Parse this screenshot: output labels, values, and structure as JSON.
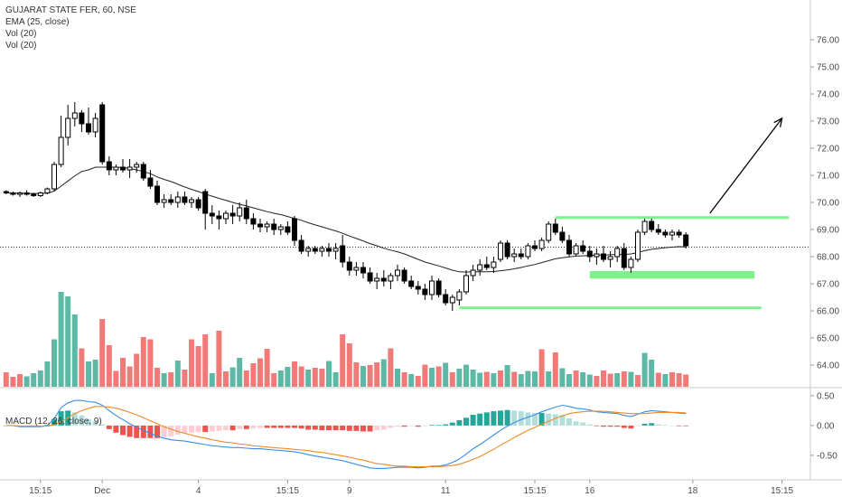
{
  "header": {
    "symbol_line": "GUJARAT STATE FER, 60, NSE",
    "indicators": [
      "EMA (25, close)",
      "Vol (20)",
      "Vol (20)"
    ],
    "macd_label": "MACD (12, 26, close, 9)"
  },
  "chart_data": {
    "type": "candlestick",
    "title": "GUJARAT STATE FER, 60, NSE",
    "price_axis": {
      "ylim": [
        63.2,
        76.8
      ],
      "ticks": [
        "76.00",
        "75.00",
        "74.00",
        "73.00",
        "72.00",
        "71.00",
        "70.00",
        "69.00",
        "68.00",
        "67.00",
        "66.00",
        "65.00",
        "64.00"
      ],
      "current_price_line": 68.35
    },
    "macd_axis": {
      "ylim": [
        -0.85,
        0.62
      ],
      "ticks": [
        "0.50",
        "0.00",
        "-0.50"
      ]
    },
    "time_axis": {
      "labels": [
        "15:15",
        "Dec",
        "4",
        "15:15",
        "9",
        "11",
        "15:15",
        "16",
        "18",
        "15:15"
      ]
    },
    "colors": {
      "up": "#ffffff",
      "down": "#000000",
      "vol_up": "#4fb39e",
      "vol_down": "#ef6f6c",
      "ema": "#222222",
      "macd": "#3a8ee6",
      "signal": "#f08a24",
      "hist_pos_strong": "#26a69a",
      "hist_pos_weak": "#b2dfdb",
      "hist_neg_strong": "#ef5350",
      "hist_neg_weak": "#ffcdd2",
      "zone": "#66ee77"
    },
    "candles": [
      [
        70.4,
        70.45,
        70.3,
        70.35
      ],
      [
        70.35,
        70.4,
        70.25,
        70.3
      ],
      [
        70.3,
        70.4,
        70.2,
        70.35
      ],
      [
        70.35,
        70.45,
        70.25,
        70.3
      ],
      [
        70.3,
        70.35,
        70.2,
        70.25
      ],
      [
        70.25,
        70.4,
        70.2,
        70.35
      ],
      [
        70.35,
        70.55,
        70.3,
        70.5
      ],
      [
        70.5,
        71.5,
        70.4,
        71.4
      ],
      [
        71.4,
        73.2,
        71.3,
        72.4
      ],
      [
        72.4,
        73.6,
        72.1,
        73.1
      ],
      [
        73.1,
        73.7,
        72.8,
        73.3
      ],
      [
        73.3,
        73.4,
        72.6,
        72.9
      ],
      [
        72.9,
        73.5,
        72.5,
        72.6
      ],
      [
        72.6,
        73.3,
        72.4,
        73.1
      ],
      [
        73.6,
        73.7,
        71.4,
        71.5
      ],
      [
        71.5,
        71.7,
        71.0,
        71.2
      ],
      [
        71.2,
        71.4,
        71.0,
        71.3
      ],
      [
        71.3,
        71.6,
        71.1,
        71.2
      ],
      [
        71.2,
        71.6,
        70.9,
        71.3
      ],
      [
        71.3,
        71.5,
        71.1,
        71.4
      ],
      [
        71.4,
        71.5,
        70.8,
        70.9
      ],
      [
        70.9,
        71.2,
        70.5,
        70.6
      ],
      [
        70.6,
        70.8,
        69.9,
        70.0
      ],
      [
        70.0,
        70.3,
        69.8,
        70.1
      ],
      [
        70.1,
        70.3,
        69.9,
        70.0
      ],
      [
        70.0,
        70.4,
        69.8,
        70.2
      ],
      [
        70.2,
        70.4,
        69.9,
        70.0
      ],
      [
        70.0,
        70.2,
        69.8,
        70.1
      ],
      [
        70.1,
        70.2,
        69.7,
        69.8
      ],
      [
        70.4,
        70.5,
        69.0,
        69.6
      ],
      [
        69.6,
        69.9,
        69.2,
        69.5
      ],
      [
        69.5,
        69.7,
        69.0,
        69.4
      ],
      [
        69.4,
        69.7,
        69.2,
        69.6
      ],
      [
        69.6,
        69.9,
        69.2,
        69.5
      ],
      [
        69.5,
        70.0,
        69.3,
        69.8
      ],
      [
        69.8,
        70.1,
        69.2,
        69.4
      ],
      [
        69.4,
        69.6,
        69.0,
        69.2
      ],
      [
        69.2,
        69.4,
        68.9,
        69.1
      ],
      [
        69.1,
        69.3,
        68.9,
        69.2
      ],
      [
        69.2,
        69.4,
        68.8,
        69.0
      ],
      [
        69.0,
        69.2,
        68.8,
        69.1
      ],
      [
        69.1,
        69.3,
        68.8,
        68.9
      ],
      [
        69.4,
        69.5,
        68.4,
        68.6
      ],
      [
        68.6,
        68.8,
        68.1,
        68.2
      ],
      [
        68.2,
        68.4,
        68.0,
        68.3
      ],
      [
        68.3,
        68.4,
        68.1,
        68.2
      ],
      [
        68.2,
        68.4,
        68.0,
        68.3
      ],
      [
        68.3,
        68.5,
        68.0,
        68.2
      ],
      [
        68.2,
        68.5,
        67.9,
        68.3
      ],
      [
        68.4,
        68.8,
        67.6,
        67.8
      ],
      [
        67.8,
        68.0,
        67.3,
        67.5
      ],
      [
        67.5,
        67.8,
        67.3,
        67.6
      ],
      [
        67.6,
        67.8,
        67.2,
        67.4
      ],
      [
        67.4,
        67.6,
        67.0,
        67.1
      ],
      [
        67.1,
        67.4,
        66.8,
        67.2
      ],
      [
        67.2,
        67.5,
        66.9,
        67.1
      ],
      [
        67.1,
        67.4,
        66.8,
        67.3
      ],
      [
        67.3,
        67.7,
        67.1,
        67.5
      ],
      [
        67.5,
        67.6,
        67.0,
        67.1
      ],
      [
        67.1,
        67.3,
        66.8,
        66.9
      ],
      [
        66.9,
        67.1,
        66.6,
        66.8
      ],
      [
        66.8,
        67.0,
        66.4,
        66.6
      ],
      [
        66.6,
        67.3,
        66.4,
        67.1
      ],
      [
        67.1,
        67.2,
        66.5,
        66.6
      ],
      [
        66.6,
        66.8,
        66.2,
        66.3
      ],
      [
        66.3,
        66.6,
        66.0,
        66.5
      ],
      [
        66.4,
        66.8,
        66.2,
        66.7
      ],
      [
        66.7,
        67.5,
        66.6,
        67.3
      ],
      [
        67.3,
        67.7,
        67.1,
        67.5
      ],
      [
        67.5,
        67.9,
        67.3,
        67.7
      ],
      [
        67.7,
        68.0,
        67.5,
        67.6
      ],
      [
        67.6,
        68.0,
        67.4,
        67.8
      ],
      [
        67.9,
        68.6,
        67.8,
        68.5
      ],
      [
        68.5,
        68.6,
        67.9,
        68.0
      ],
      [
        68.0,
        68.3,
        67.8,
        68.1
      ],
      [
        68.1,
        68.3,
        67.9,
        68.0
      ],
      [
        68.0,
        68.5,
        67.9,
        68.4
      ],
      [
        68.4,
        68.6,
        68.2,
        68.3
      ],
      [
        68.3,
        68.7,
        68.2,
        68.6
      ],
      [
        68.6,
        69.3,
        68.5,
        69.2
      ],
      [
        69.2,
        69.4,
        68.8,
        68.9
      ],
      [
        68.9,
        69.1,
        68.5,
        68.6
      ],
      [
        68.6,
        68.8,
        68.0,
        68.1
      ],
      [
        68.1,
        68.5,
        68.0,
        68.4
      ],
      [
        68.4,
        68.6,
        68.1,
        68.2
      ],
      [
        68.2,
        68.4,
        67.8,
        68.0
      ],
      [
        68.0,
        68.3,
        67.7,
        68.1
      ],
      [
        68.1,
        68.4,
        67.8,
        67.9
      ],
      [
        67.9,
        68.2,
        67.6,
        68.0
      ],
      [
        68.0,
        68.4,
        67.8,
        68.3
      ],
      [
        68.3,
        68.5,
        67.5,
        67.6
      ],
      [
        67.6,
        68.0,
        67.4,
        67.9
      ],
      [
        67.9,
        69.0,
        67.8,
        68.9
      ],
      [
        68.9,
        69.4,
        68.8,
        69.3
      ],
      [
        69.3,
        69.4,
        68.9,
        69.0
      ],
      [
        69.0,
        69.2,
        68.8,
        68.9
      ],
      [
        68.9,
        69.0,
        68.7,
        68.8
      ],
      [
        68.8,
        69.0,
        68.6,
        68.9
      ],
      [
        68.9,
        69.0,
        68.7,
        68.8
      ],
      [
        68.8,
        68.9,
        68.3,
        68.4
      ]
    ],
    "volume": [
      [
        3.2,
        0
      ],
      [
        2.2,
        0
      ],
      [
        2.8,
        0
      ],
      [
        2.3,
        1
      ],
      [
        3.0,
        1
      ],
      [
        3.6,
        1
      ],
      [
        5.6,
        1
      ],
      [
        10.5,
        1
      ],
      [
        21,
        1
      ],
      [
        20,
        1
      ],
      [
        16,
        1
      ],
      [
        8.5,
        0
      ],
      [
        5.6,
        1
      ],
      [
        6.0,
        1
      ],
      [
        15,
        0
      ],
      [
        9.2,
        0
      ],
      [
        3.5,
        0
      ],
      [
        6.4,
        0
      ],
      [
        4.5,
        0
      ],
      [
        7.3,
        0
      ],
      [
        11,
        0
      ],
      [
        10.5,
        0
      ],
      [
        4.2,
        0
      ],
      [
        3.0,
        1
      ],
      [
        3.2,
        0
      ],
      [
        5.8,
        1
      ],
      [
        3.8,
        0
      ],
      [
        10.5,
        0
      ],
      [
        9.0,
        0
      ],
      [
        11.6,
        0
      ],
      [
        3.0,
        1
      ],
      [
        12.4,
        0
      ],
      [
        3.4,
        0
      ],
      [
        4.3,
        1
      ],
      [
        6.4,
        1
      ],
      [
        3.6,
        0
      ],
      [
        5.2,
        0
      ],
      [
        6.3,
        0
      ],
      [
        8.4,
        0
      ],
      [
        3.0,
        0
      ],
      [
        3.6,
        1
      ],
      [
        4.4,
        1
      ],
      [
        5.6,
        0
      ],
      [
        4.5,
        0
      ],
      [
        3.8,
        1
      ],
      [
        4.2,
        0
      ],
      [
        4.0,
        0
      ],
      [
        5.7,
        1
      ],
      [
        3.2,
        1
      ],
      [
        11.6,
        0
      ],
      [
        9.6,
        0
      ],
      [
        5.4,
        0
      ],
      [
        4.6,
        1
      ],
      [
        4.8,
        0
      ],
      [
        5.4,
        0
      ],
      [
        6.1,
        1
      ],
      [
        8.5,
        0
      ],
      [
        4.0,
        1
      ],
      [
        3.2,
        0
      ],
      [
        2.8,
        1
      ],
      [
        2.4,
        0
      ],
      [
        4.9,
        0
      ],
      [
        4.2,
        1
      ],
      [
        4.5,
        0
      ],
      [
        5.3,
        1
      ],
      [
        3.2,
        0
      ],
      [
        4.0,
        1
      ],
      [
        4.9,
        1
      ],
      [
        3.8,
        1
      ],
      [
        3.1,
        1
      ],
      [
        3.3,
        0
      ],
      [
        3.0,
        1
      ],
      [
        3.6,
        0
      ],
      [
        4.8,
        1
      ],
      [
        3.3,
        0
      ],
      [
        2.8,
        1
      ],
      [
        3.5,
        1
      ],
      [
        3.4,
        1
      ],
      [
        8.3,
        0
      ],
      [
        3.4,
        1
      ],
      [
        7.6,
        0
      ],
      [
        4.1,
        1
      ],
      [
        2.8,
        1
      ],
      [
        3.6,
        0
      ],
      [
        3.2,
        1
      ],
      [
        2.7,
        1
      ],
      [
        2.4,
        0
      ],
      [
        3.6,
        0
      ],
      [
        2.9,
        0
      ],
      [
        3.0,
        1
      ],
      [
        3.4,
        0
      ],
      [
        3.3,
        1
      ],
      [
        2.6,
        0
      ],
      [
        7.5,
        1
      ],
      [
        6.0,
        1
      ],
      [
        3.1,
        0
      ],
      [
        2.8,
        1
      ],
      [
        3.2,
        0
      ],
      [
        3.0,
        0
      ],
      [
        2.7,
        0
      ]
    ],
    "ema": [
      70.35,
      70.34,
      70.34,
      70.33,
      70.33,
      70.33,
      70.34,
      70.42,
      70.6,
      70.79,
      70.98,
      71.14,
      71.2,
      71.3,
      71.3,
      71.3,
      71.3,
      71.29,
      71.25,
      71.2,
      71.14,
      71.06,
      70.94,
      70.85,
      70.77,
      70.67,
      70.57,
      70.48,
      70.4,
      70.31,
      70.23,
      70.15,
      70.08,
      70.0,
      69.93,
      69.87,
      69.8,
      69.73,
      69.66,
      69.6,
      69.55,
      69.48,
      69.41,
      69.34,
      69.25,
      69.17,
      69.1,
      69.02,
      68.95,
      68.86,
      68.76,
      68.67,
      68.58,
      68.48,
      68.4,
      68.31,
      68.24,
      68.18,
      68.1,
      68.0,
      67.9,
      67.8,
      67.73,
      67.66,
      67.58,
      67.5,
      67.44,
      67.43,
      67.44,
      67.44,
      67.44,
      67.45,
      67.48,
      67.51,
      67.55,
      67.6,
      67.66,
      67.71,
      67.78,
      67.85,
      67.92,
      67.96,
      67.99,
      68.02,
      68.03,
      68.04,
      68.06,
      68.06,
      68.07,
      68.08,
      68.08,
      68.1,
      68.15,
      68.22,
      68.27,
      68.3,
      68.33,
      68.35,
      68.37,
      68.36
    ],
    "macd": {
      "macd": [
        0.0,
        0.0,
        -0.02,
        -0.02,
        -0.02,
        -0.02,
        0.0,
        0.12,
        0.3,
        0.38,
        0.42,
        0.42,
        0.4,
        0.39,
        0.34,
        0.25,
        0.17,
        0.1,
        0.03,
        -0.03,
        -0.08,
        -0.13,
        -0.18,
        -0.21,
        -0.24,
        -0.25,
        -0.26,
        -0.28,
        -0.3,
        -0.32,
        -0.34,
        -0.35,
        -0.36,
        -0.37,
        -0.37,
        -0.38,
        -0.39,
        -0.39,
        -0.4,
        -0.41,
        -0.42,
        -0.43,
        -0.44,
        -0.46,
        -0.49,
        -0.51,
        -0.53,
        -0.55,
        -0.57,
        -0.59,
        -0.62,
        -0.65,
        -0.68,
        -0.71,
        -0.72,
        -0.72,
        -0.71,
        -0.7,
        -0.7,
        -0.7,
        -0.71,
        -0.7,
        -0.68,
        -0.68,
        -0.66,
        -0.62,
        -0.56,
        -0.48,
        -0.39,
        -0.32,
        -0.24,
        -0.16,
        -0.08,
        -0.01,
        0.05,
        0.1,
        0.14,
        0.18,
        0.23,
        0.27,
        0.31,
        0.34,
        0.32,
        0.29,
        0.28,
        0.26,
        0.23,
        0.22,
        0.21,
        0.2,
        0.17,
        0.15,
        0.19,
        0.23,
        0.25,
        0.24,
        0.23,
        0.22,
        0.21,
        0.2
      ],
      "signal": [
        0.0,
        0.0,
        -0.01,
        -0.01,
        -0.01,
        -0.01,
        -0.01,
        0.01,
        0.06,
        0.13,
        0.2,
        0.25,
        0.29,
        0.32,
        0.32,
        0.31,
        0.29,
        0.26,
        0.22,
        0.18,
        0.13,
        0.08,
        0.03,
        -0.02,
        -0.06,
        -0.1,
        -0.13,
        -0.16,
        -0.19,
        -0.21,
        -0.24,
        -0.26,
        -0.28,
        -0.29,
        -0.31,
        -0.32,
        -0.34,
        -0.35,
        -0.36,
        -0.37,
        -0.38,
        -0.39,
        -0.4,
        -0.41,
        -0.42,
        -0.44,
        -0.45,
        -0.47,
        -0.49,
        -0.51,
        -0.53,
        -0.56,
        -0.58,
        -0.61,
        -0.64,
        -0.65,
        -0.67,
        -0.68,
        -0.68,
        -0.69,
        -0.69,
        -0.69,
        -0.69,
        -0.69,
        -0.68,
        -0.67,
        -0.65,
        -0.61,
        -0.57,
        -0.52,
        -0.46,
        -0.4,
        -0.33,
        -0.27,
        -0.2,
        -0.14,
        -0.08,
        -0.03,
        0.02,
        0.07,
        0.12,
        0.16,
        0.2,
        0.22,
        0.23,
        0.24,
        0.24,
        0.24,
        0.23,
        0.22,
        0.21,
        0.2,
        0.2,
        0.2,
        0.21,
        0.22,
        0.22,
        0.22,
        0.22,
        0.21
      ],
      "hist": [
        0.0,
        0.0,
        -0.01,
        -0.01,
        -0.01,
        -0.01,
        0.01,
        0.11,
        0.24,
        0.25,
        0.22,
        0.17,
        0.11,
        0.07,
        0.02,
        -0.06,
        -0.12,
        -0.16,
        -0.19,
        -0.21,
        -0.21,
        -0.21,
        -0.21,
        -0.19,
        -0.18,
        -0.15,
        -0.13,
        -0.12,
        -0.11,
        -0.11,
        -0.1,
        -0.09,
        -0.08,
        -0.08,
        -0.06,
        -0.06,
        -0.05,
        -0.04,
        -0.04,
        -0.04,
        -0.04,
        -0.04,
        -0.04,
        -0.05,
        -0.07,
        -0.07,
        -0.08,
        -0.08,
        -0.08,
        -0.08,
        -0.09,
        -0.09,
        -0.1,
        -0.1,
        -0.08,
        -0.07,
        -0.04,
        -0.02,
        -0.02,
        -0.01,
        -0.02,
        -0.01,
        0.01,
        0.01,
        0.02,
        0.05,
        0.09,
        0.13,
        0.18,
        0.2,
        0.22,
        0.24,
        0.25,
        0.26,
        0.25,
        0.24,
        0.22,
        0.21,
        0.21,
        0.2,
        0.19,
        0.18,
        0.12,
        0.07,
        0.05,
        0.02,
        -0.01,
        -0.02,
        -0.02,
        -0.02,
        -0.04,
        -0.05,
        -0.01,
        0.03,
        0.04,
        0.02,
        0.01,
        0.0,
        -0.01,
        -0.01
      ]
    },
    "annotations": {
      "zones": [
        {
          "y": 69.45,
          "x_from": 80,
          "x_to": 114,
          "thickness": 0.08
        },
        {
          "y": 67.33,
          "x_from": 85,
          "x_to": 109,
          "thickness": 0.28
        },
        {
          "y": 66.13,
          "x_from": 66,
          "x_to": 110,
          "thickness": 0.06
        }
      ],
      "arrow": {
        "from": [
          102.5,
          69.6
        ],
        "to": [
          113,
          73.1
        ]
      }
    }
  }
}
